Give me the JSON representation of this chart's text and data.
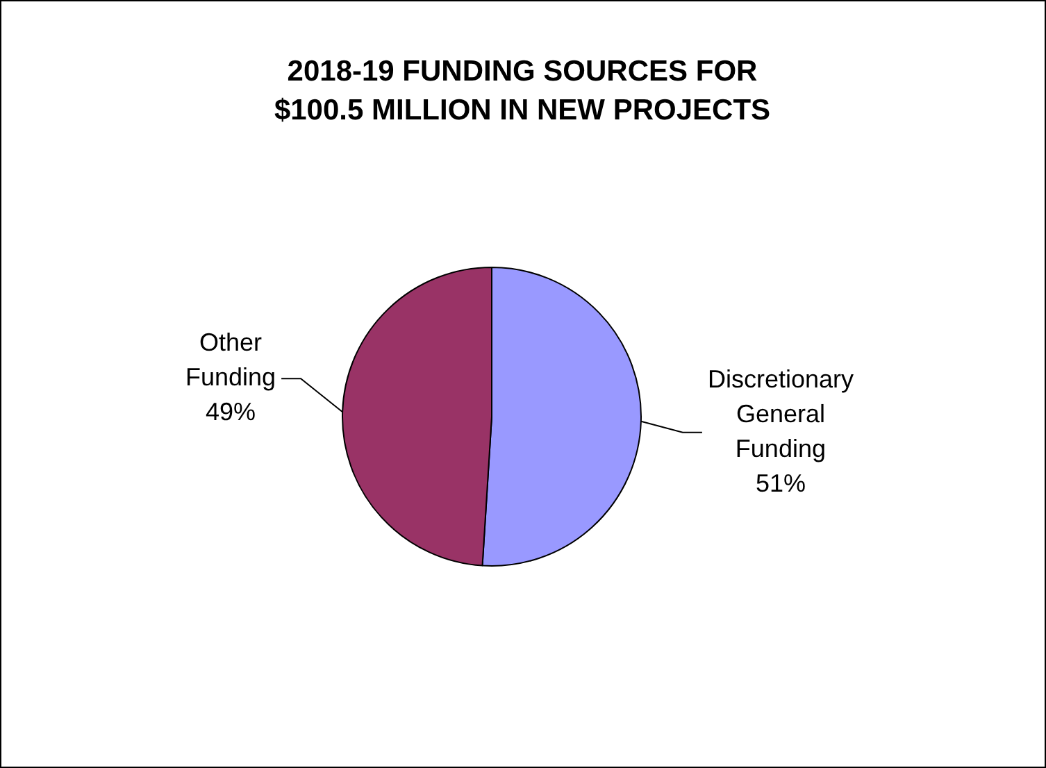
{
  "chart_data": {
    "type": "pie",
    "title": "2018-19 FUNDING SOURCES FOR $100.5 MILLION IN NEW PROJECTS",
    "categories": [
      "Discretionary General Funding",
      "Other Funding"
    ],
    "values": [
      51,
      49
    ],
    "colors": [
      "#9999ff",
      "#993366"
    ],
    "value_labels": [
      "51%",
      "49%"
    ],
    "legend": false
  }
}
